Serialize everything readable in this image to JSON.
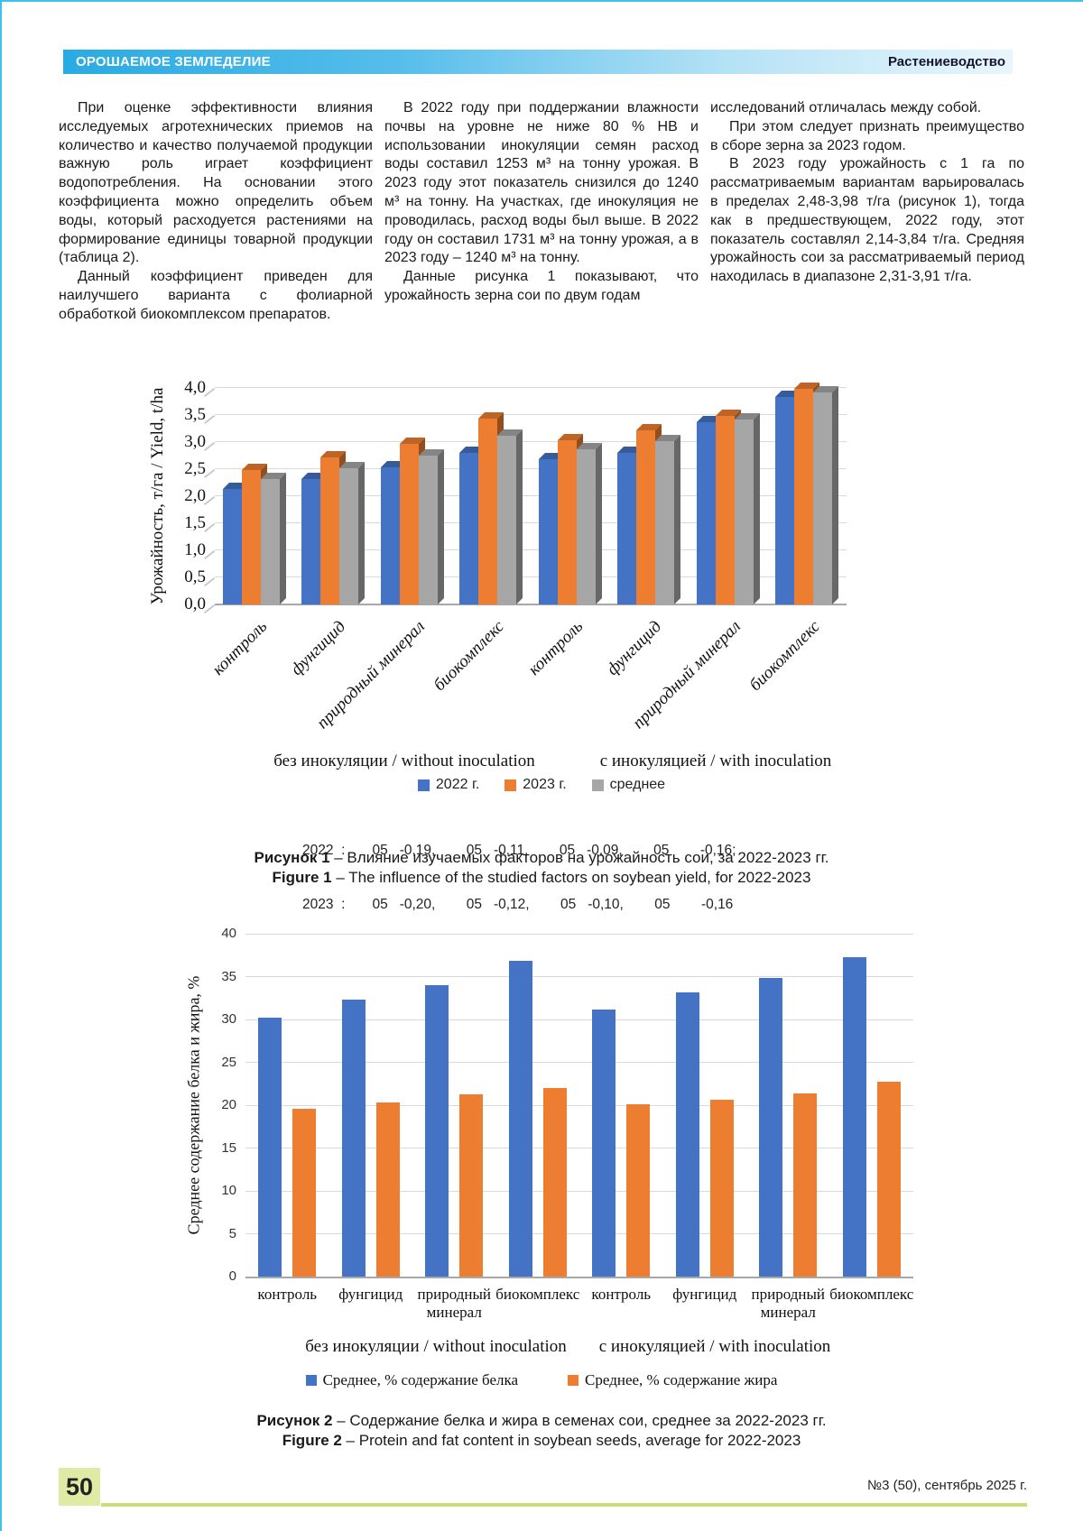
{
  "header": {
    "section": "ОРОШАЕМОЕ ЗЕМЛЕДЕЛИЕ",
    "rubric": "Растениеводство"
  },
  "body": {
    "col1": {
      "p1": "При оценке эффективности влияния исследуемых агротехнических приемов на количество и качество получаемой продукции важную роль играет коэффициент водопотребления. На основании этого коэффициента можно определить объем воды, который расходуется растениями на формирование единицы товарной продукции (таблица 2).",
      "p2": "Данный коэффициент приведен для наилучшего варианта с фолиарной обработкой биокомплексом препаратов."
    },
    "col2": {
      "p1": "В 2022 году при поддержании влажности почвы на уровне не ниже 80 % НВ и использовании инокуляции семян расход воды составил 1253 м³ на тонну урожая. В 2023 году этот показатель снизился до 1240 м³ на тонну. На участках, где инокуляция не проводилась, расход воды был выше. В 2022 году он составил 1731 м³ на тонну урожая, а в 2023 году – 1240 м³ на тонну.",
      "p2": "Данные рисунка 1 показывают, что урожайность зерна сои по двум годам"
    },
    "col3": {
      "p1": "исследований отличалась между собой.",
      "p2": "При этом следует признать преимущество в сборе зерна за 2023 годом.",
      "p3": "В 2023 году урожайность с 1 га по рассматриваемым вариантам варьировалась в пределах 2,48-3,98 т/га (рисунок 1), тогда как в предшествующем, 2022 году, этот показатель составлял 2,14-3,84 т/га. Средняя урожайность сои за рассматриваемый период находилась в диапазоне 2,31-3,91 т/га."
    }
  },
  "chart_data": [
    {
      "type": "bar",
      "style": "3d",
      "ylabel": "Урожайность, т/га / Yield, t/ha",
      "ylim": [
        0,
        4.0
      ],
      "ytick_step": 0.5,
      "grid": true,
      "legend_position": "bottom",
      "categories": [
        "контроль",
        "фунгицид",
        "природный минерал",
        "биокомплекс",
        "контроль",
        "фунгицид",
        "природный минерал",
        "биокомплекс"
      ],
      "group_labels": [
        "без инокуляции / without inoculation",
        "с инокуляцией / with inoculation"
      ],
      "series": [
        {
          "name": "2022 г.",
          "color": "#4472C4",
          "values": [
            2.14,
            2.32,
            2.54,
            2.8,
            2.68,
            2.8,
            3.36,
            3.84
          ]
        },
        {
          "name": "2023 г.",
          "color": "#ED7D31",
          "values": [
            2.48,
            2.72,
            2.96,
            3.43,
            3.04,
            3.22,
            3.48,
            3.98
          ]
        },
        {
          "name": "среднее",
          "color": "#A6A6A6",
          "values": [
            2.31,
            2.52,
            2.75,
            3.12,
            2.86,
            3.01,
            3.42,
            3.91
          ]
        }
      ]
    },
    {
      "type": "bar",
      "style": "flat",
      "ylabel": "Среднее содержание белка и жира, %",
      "ylim": [
        0,
        40
      ],
      "ytick_step": 5,
      "grid": true,
      "legend_position": "bottom",
      "categories": [
        "контроль",
        "фунгицид",
        "природный минерал",
        "биокомплекс",
        "контроль",
        "фунгицид",
        "природный минерал",
        "биокомплекс"
      ],
      "group_labels": [
        "без инокуляции / without inoculation",
        "с инокуляцией / with inoculation"
      ],
      "series": [
        {
          "name": "Среднее, % содержание белка",
          "color": "#4472C4",
          "values": [
            30.2,
            32.3,
            34.0,
            36.8,
            31.2,
            33.2,
            34.8,
            37.3
          ]
        },
        {
          "name": "Среднее, % содержание жира",
          "color": "#ED7D31",
          "values": [
            19.6,
            20.3,
            21.3,
            22.0,
            20.1,
            20.6,
            21.4,
            22.7
          ]
        }
      ]
    }
  ],
  "figure1": {
    "notes_line1": "2022  :       05   -0,19,        05   -0,11,        05   -0,09,        05        -0,16;",
    "notes_line2": "2023  :       05   -0,20,        05   -0,12,        05   -0,10,        05        -0,16",
    "caption_ru_label": "Рисунок 1",
    "caption_ru_text": " – Влияние изучаемых факторов на урожайность сои, за 2022-2023 гг.",
    "caption_en_label": "Figure 1",
    "caption_en_text": " – The influence of the studied factors on soybean yield, for 2022-2023"
  },
  "figure2": {
    "caption_ru_label": "Рисунок 2",
    "caption_ru_text": " – Содержание белка и жира в семенах сои, среднее за 2022-2023 гг.",
    "caption_en_label": "Figure 2",
    "caption_en_text": " – Protein and fat content in soybean seeds, average for 2022-2023"
  },
  "footer": {
    "page_number": "50",
    "issue": "№3 (50), сентябрь 2025 г."
  },
  "colors": {
    "accent_blue": "#29ABE2",
    "series_2022": "#4472C4",
    "series_2023": "#ED7D31",
    "series_avg": "#A6A6A6",
    "footer_green": "#CBDB7B"
  }
}
